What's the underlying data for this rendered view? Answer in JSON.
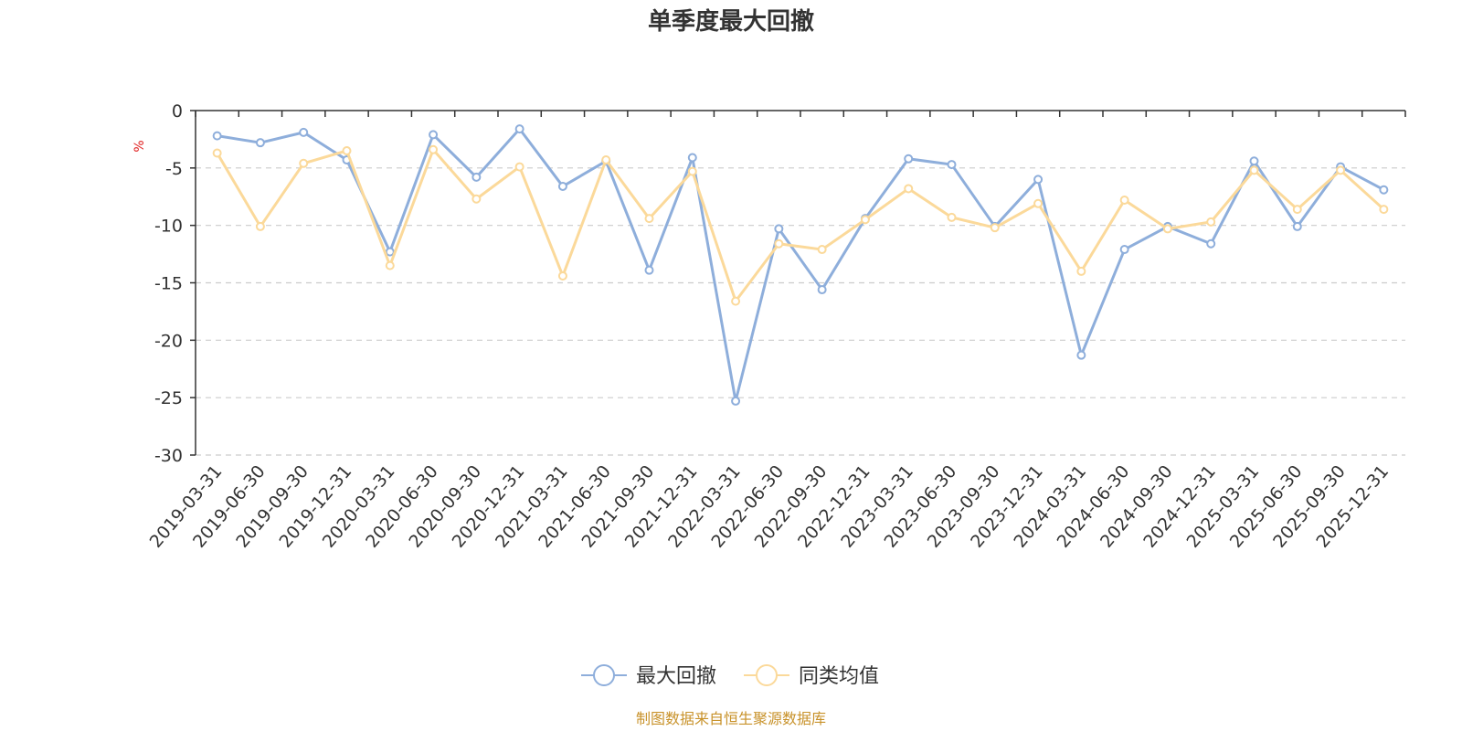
{
  "chart_data": {
    "type": "line",
    "title": "单季度最大回撤",
    "ylabel": "%",
    "ylim": [
      -30,
      0
    ],
    "yticks": [
      0,
      -5,
      -10,
      -15,
      -20,
      -25,
      -30
    ],
    "grid": true,
    "legend_position": "bottom-center",
    "categories": [
      "2019-03-31",
      "2019-06-30",
      "2019-09-30",
      "2019-12-31",
      "2020-03-31",
      "2020-06-30",
      "2020-09-30",
      "2020-12-31",
      "2021-03-31",
      "2021-06-30",
      "2021-09-30",
      "2021-12-31",
      "2022-03-31",
      "2022-06-30",
      "2022-09-30",
      "2022-12-31",
      "2023-03-31",
      "2023-06-30",
      "2023-09-30",
      "2023-12-31",
      "2024-03-31",
      "2024-06-30",
      "2024-09-30",
      "2024-12-31",
      "2025-03-31",
      "2025-06-30",
      "2025-09-30",
      "2025-12-31"
    ],
    "series": [
      {
        "name": "最大回撤",
        "color": "#8eaedb",
        "values": [
          -2.2,
          -2.8,
          -1.9,
          -4.3,
          -12.3,
          -2.1,
          -5.8,
          -1.6,
          -6.6,
          -4.4,
          -13.9,
          -4.1,
          -25.3,
          -10.3,
          -15.6,
          -9.4,
          -4.2,
          -4.7,
          -10.1,
          -6.0,
          -21.3,
          -12.1,
          -10.1,
          -11.6,
          -4.4,
          -10.1,
          -4.9,
          -6.9
        ]
      },
      {
        "name": "同类均值",
        "color": "#fbd99a",
        "values": [
          -3.7,
          -10.1,
          -4.6,
          -3.5,
          -13.5,
          -3.4,
          -7.7,
          -4.9,
          -14.4,
          -4.3,
          -9.4,
          -5.3,
          -16.6,
          -11.6,
          -12.1,
          -9.5,
          -6.8,
          -9.3,
          -10.2,
          -8.1,
          -14.0,
          -7.8,
          -10.3,
          -9.7,
          -5.2,
          -8.6,
          -5.2,
          -8.6
        ]
      }
    ]
  },
  "footer": {
    "source": "制图数据来自恒生聚源数据库"
  }
}
